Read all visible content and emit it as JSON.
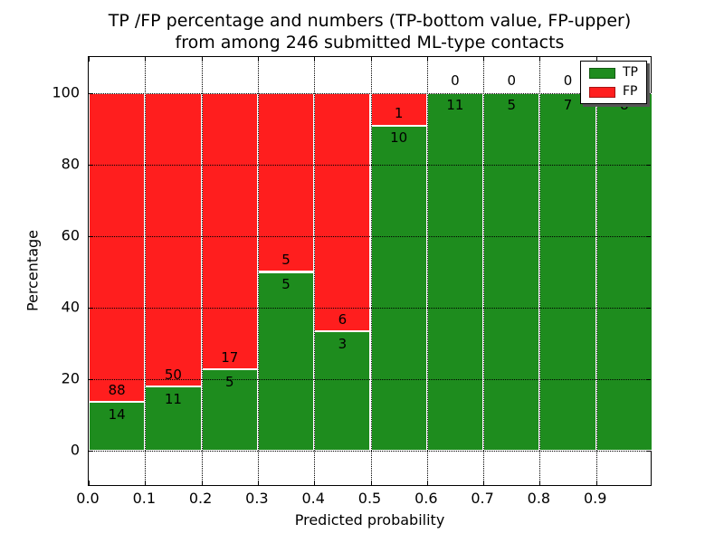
{
  "chart_data": {
    "type": "bar",
    "stacked": true,
    "normalized_to_percent": true,
    "title": "TP /FP percentage and numbers (TP-bottom value, FP-upper)",
    "subtitle": "from among 246 submitted ML-type contacts",
    "xlabel": "Predicted probability",
    "ylabel": "Percentage",
    "categories": [
      "0.0-0.1",
      "0.1-0.2",
      "0.2-0.3",
      "0.3-0.4",
      "0.4-0.5",
      "0.5-0.6",
      "0.6-0.7",
      "0.7-0.8",
      "0.8-0.9",
      "0.9-1.0"
    ],
    "bin_width": 0.1,
    "series": [
      {
        "name": "TP",
        "color": "#1e8c1e",
        "values": [
          14,
          11,
          5,
          5,
          3,
          10,
          11,
          5,
          7,
          8
        ]
      },
      {
        "name": "FP",
        "color": "#ff1e1e",
        "values": [
          88,
          50,
          17,
          5,
          6,
          1,
          0,
          0,
          0,
          0
        ]
      }
    ],
    "tp_percent_heights": [
      13.7,
      18.0,
      22.7,
      50.0,
      33.3,
      90.9,
      100.0,
      100.0,
      100.0,
      100.0
    ],
    "xticks": [
      "0.0",
      "0.1",
      "0.2",
      "0.3",
      "0.4",
      "0.5",
      "0.6",
      "0.7",
      "0.8",
      "0.9"
    ],
    "yticks": [
      "0",
      "20",
      "40",
      "60",
      "80",
      "100"
    ],
    "xlim": [
      0,
      1
    ],
    "ylim": [
      -10,
      110
    ],
    "grid": "dotted",
    "legend": {
      "position": "upper-right",
      "entries": [
        "TP",
        "FP"
      ]
    }
  }
}
